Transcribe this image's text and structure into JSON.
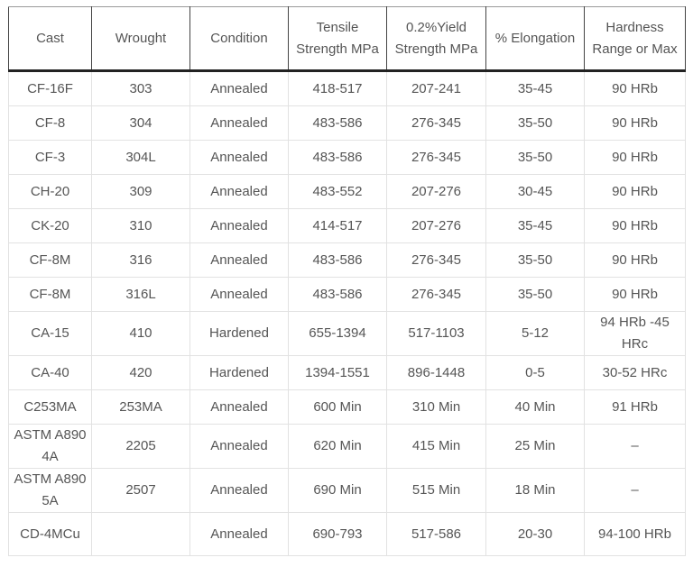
{
  "table": {
    "headers": [
      "Cast",
      "Wrought",
      "Condition",
      "Tensile Strength MPa",
      "0.2%Yield Strength MPa",
      "% Elongation",
      "Hardness Range or Max"
    ],
    "rows": [
      [
        "CF-16F",
        "303",
        "Annealed",
        "418-517",
        "207-241",
        "35-45",
        "90 HRb"
      ],
      [
        "CF-8",
        "304",
        "Annealed",
        "483-586",
        "276-345",
        "35-50",
        "90 HRb"
      ],
      [
        "CF-3",
        "304L",
        "Annealed",
        "483-586",
        "276-345",
        "35-50",
        "90 HRb"
      ],
      [
        "CH-20",
        "309",
        "Annealed",
        "483-552",
        "207-276",
        "30-45",
        "90 HRb"
      ],
      [
        "CK-20",
        "310",
        "Annealed",
        "414-517",
        "207-276",
        "35-45",
        "90 HRb"
      ],
      [
        "CF-8M",
        "316",
        "Annealed",
        "483-586",
        "276-345",
        "35-50",
        "90 HRb"
      ],
      [
        "CF-8M",
        "316L",
        "Annealed",
        "483-586",
        "276-345",
        "35-50",
        "90 HRb"
      ],
      [
        "CA-15",
        "410",
        "Hardened",
        "655-1394",
        "517-1103",
        "5-12",
        "94 HRb  -45 HRc"
      ],
      [
        "CA-40",
        "420",
        "Hardened",
        "1394-1551",
        "896-1448",
        "0-5",
        "30-52 HRc"
      ],
      [
        "C253MA",
        "253MA",
        "Annealed",
        "600 Min",
        "310 Min",
        "40 Min",
        "91 HRb"
      ],
      [
        "ASTM A890 4A",
        "2205",
        "Annealed",
        "620 Min",
        "415 Min",
        "25 Min",
        "–"
      ],
      [
        "ASTM A890 5A",
        "2507",
        "Annealed",
        "690 Min",
        "515 Min",
        "18 Min",
        "–"
      ],
      [
        "CD-4MCu",
        "",
        "Annealed",
        "690-793",
        "517-586",
        "20-30",
        "94-100 HRb"
      ]
    ]
  }
}
